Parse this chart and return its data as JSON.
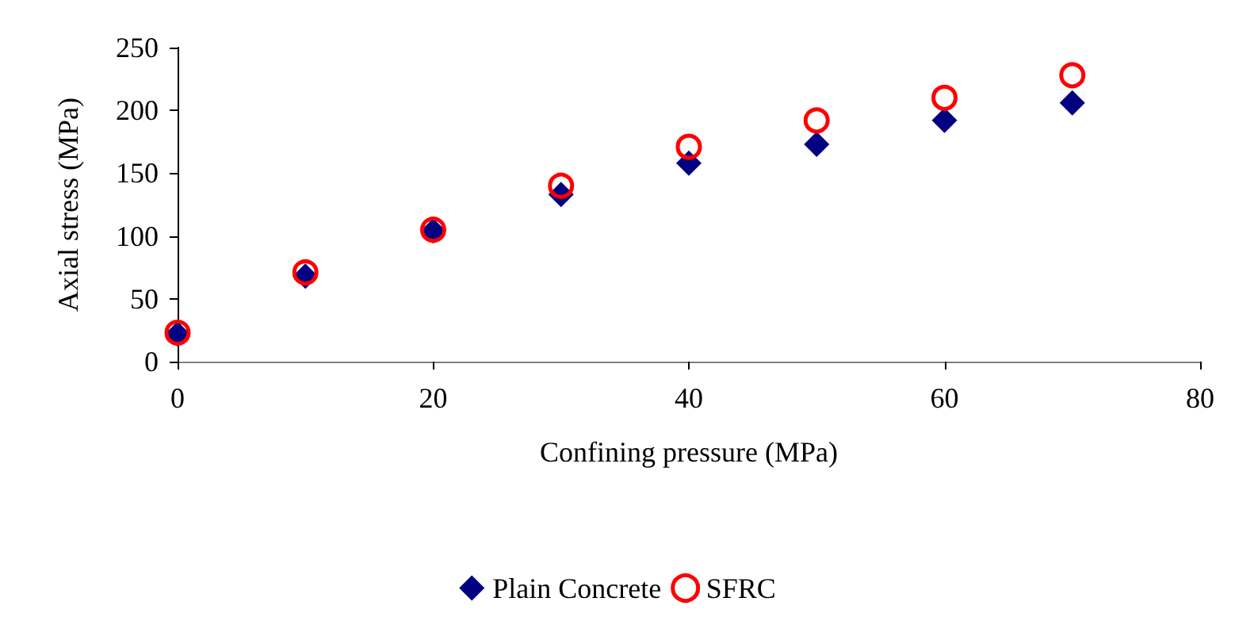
{
  "chart_data": {
    "type": "scatter",
    "xlabel": "Confining pressure (MPa)",
    "ylabel": "Axial stress (MPa)",
    "x": [
      0,
      10,
      20,
      30,
      40,
      50,
      60,
      70
    ],
    "series": [
      {
        "name": "Plain Concrete",
        "color": "#000080",
        "marker": "diamond",
        "values": [
          22,
          68,
          104,
          133,
          158,
          173,
          192,
          206
        ]
      },
      {
        "name": "SFRC",
        "color": "#ff0000",
        "marker": "circle",
        "values": [
          23,
          71,
          105,
          140,
          171,
          192,
          210,
          228
        ]
      }
    ],
    "xlim": [
      0,
      80
    ],
    "xticks": [
      0,
      20,
      40,
      60,
      80
    ],
    "ylim": [
      0,
      250
    ],
    "yticks": [
      0,
      50,
      100,
      150,
      200,
      250
    ],
    "grid": false,
    "legend": "bottom"
  }
}
